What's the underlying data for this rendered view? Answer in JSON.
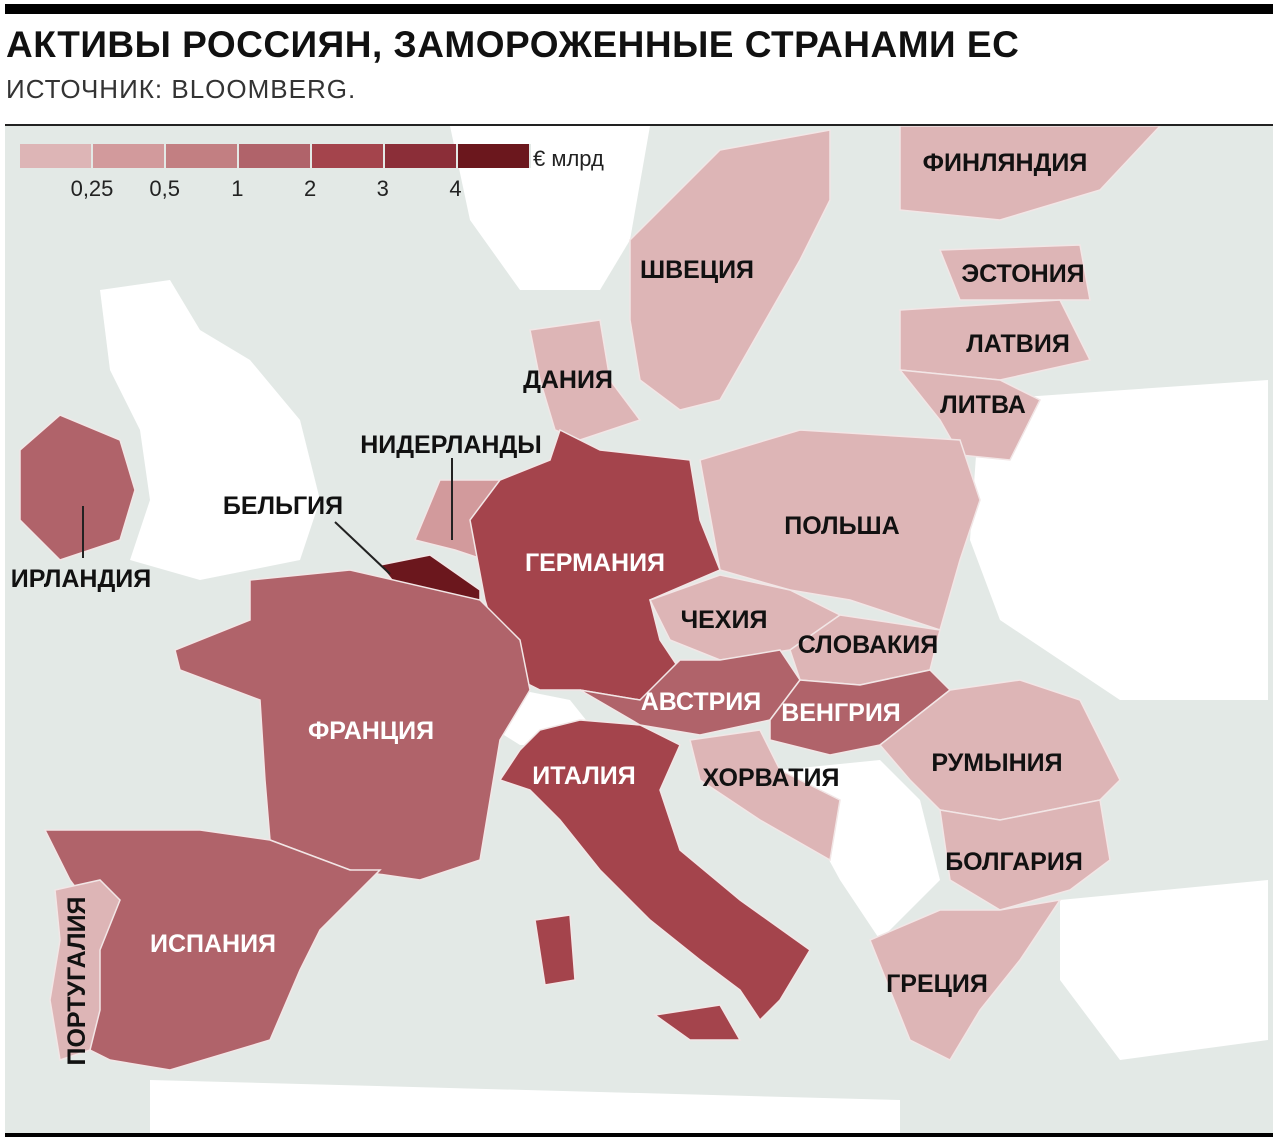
{
  "title": "АКТИВЫ РОССИЯН, ЗАМОРОЖЕННЫЕ СТРАНАМИ ЕС",
  "source": "ИСТОЧНИК: BLOOMBERG.",
  "legend": {
    "unit": "€ млрд",
    "ticks": [
      "0,25",
      "0,5",
      "1",
      "2",
      "3",
      "4"
    ],
    "colors": [
      "#ddb5b6",
      "#d29a9c",
      "#c27f82",
      "#b0636a",
      "#a4444c",
      "#8b2e38",
      "#6b171d"
    ]
  },
  "colors": {
    "sea": "#e3e9e6",
    "non_eu": "#ffffff"
  },
  "countries": [
    {
      "name": "ФИНЛЯНДИЯ",
      "bucket": 0
    },
    {
      "name": "ШВЕЦИЯ",
      "bucket": 0
    },
    {
      "name": "ЭСТОНИЯ",
      "bucket": 0
    },
    {
      "name": "ЛАТВИЯ",
      "bucket": 0
    },
    {
      "name": "ЛИТВА",
      "bucket": 0
    },
    {
      "name": "ДАНИЯ",
      "bucket": 0
    },
    {
      "name": "НИДЕРЛАНДЫ",
      "bucket": 1
    },
    {
      "name": "БЕЛЬГИЯ",
      "bucket": 6
    },
    {
      "name": "ИРЛАНДИЯ",
      "bucket": 3
    },
    {
      "name": "ГЕРМАНИЯ",
      "bucket": 4
    },
    {
      "name": "ПОЛЬША",
      "bucket": 0
    },
    {
      "name": "ЧЕХИЯ",
      "bucket": 0
    },
    {
      "name": "СЛОВАКИЯ",
      "bucket": 0
    },
    {
      "name": "АВСТРИЯ",
      "bucket": 3
    },
    {
      "name": "ВЕНГРИЯ",
      "bucket": 3
    },
    {
      "name": "ФРАНЦИЯ",
      "bucket": 3
    },
    {
      "name": "ИТАЛИЯ",
      "bucket": 4
    },
    {
      "name": "ХОРВАТИЯ",
      "bucket": 0
    },
    {
      "name": "РУМЫНИЯ",
      "bucket": 0
    },
    {
      "name": "БОЛГАРИЯ",
      "bucket": 0
    },
    {
      "name": "ИСПАНИЯ",
      "bucket": 3
    },
    {
      "name": "ПОРТУГАЛИЯ",
      "bucket": 0
    },
    {
      "name": "ГРЕЦИЯ",
      "bucket": 0
    }
  ]
}
